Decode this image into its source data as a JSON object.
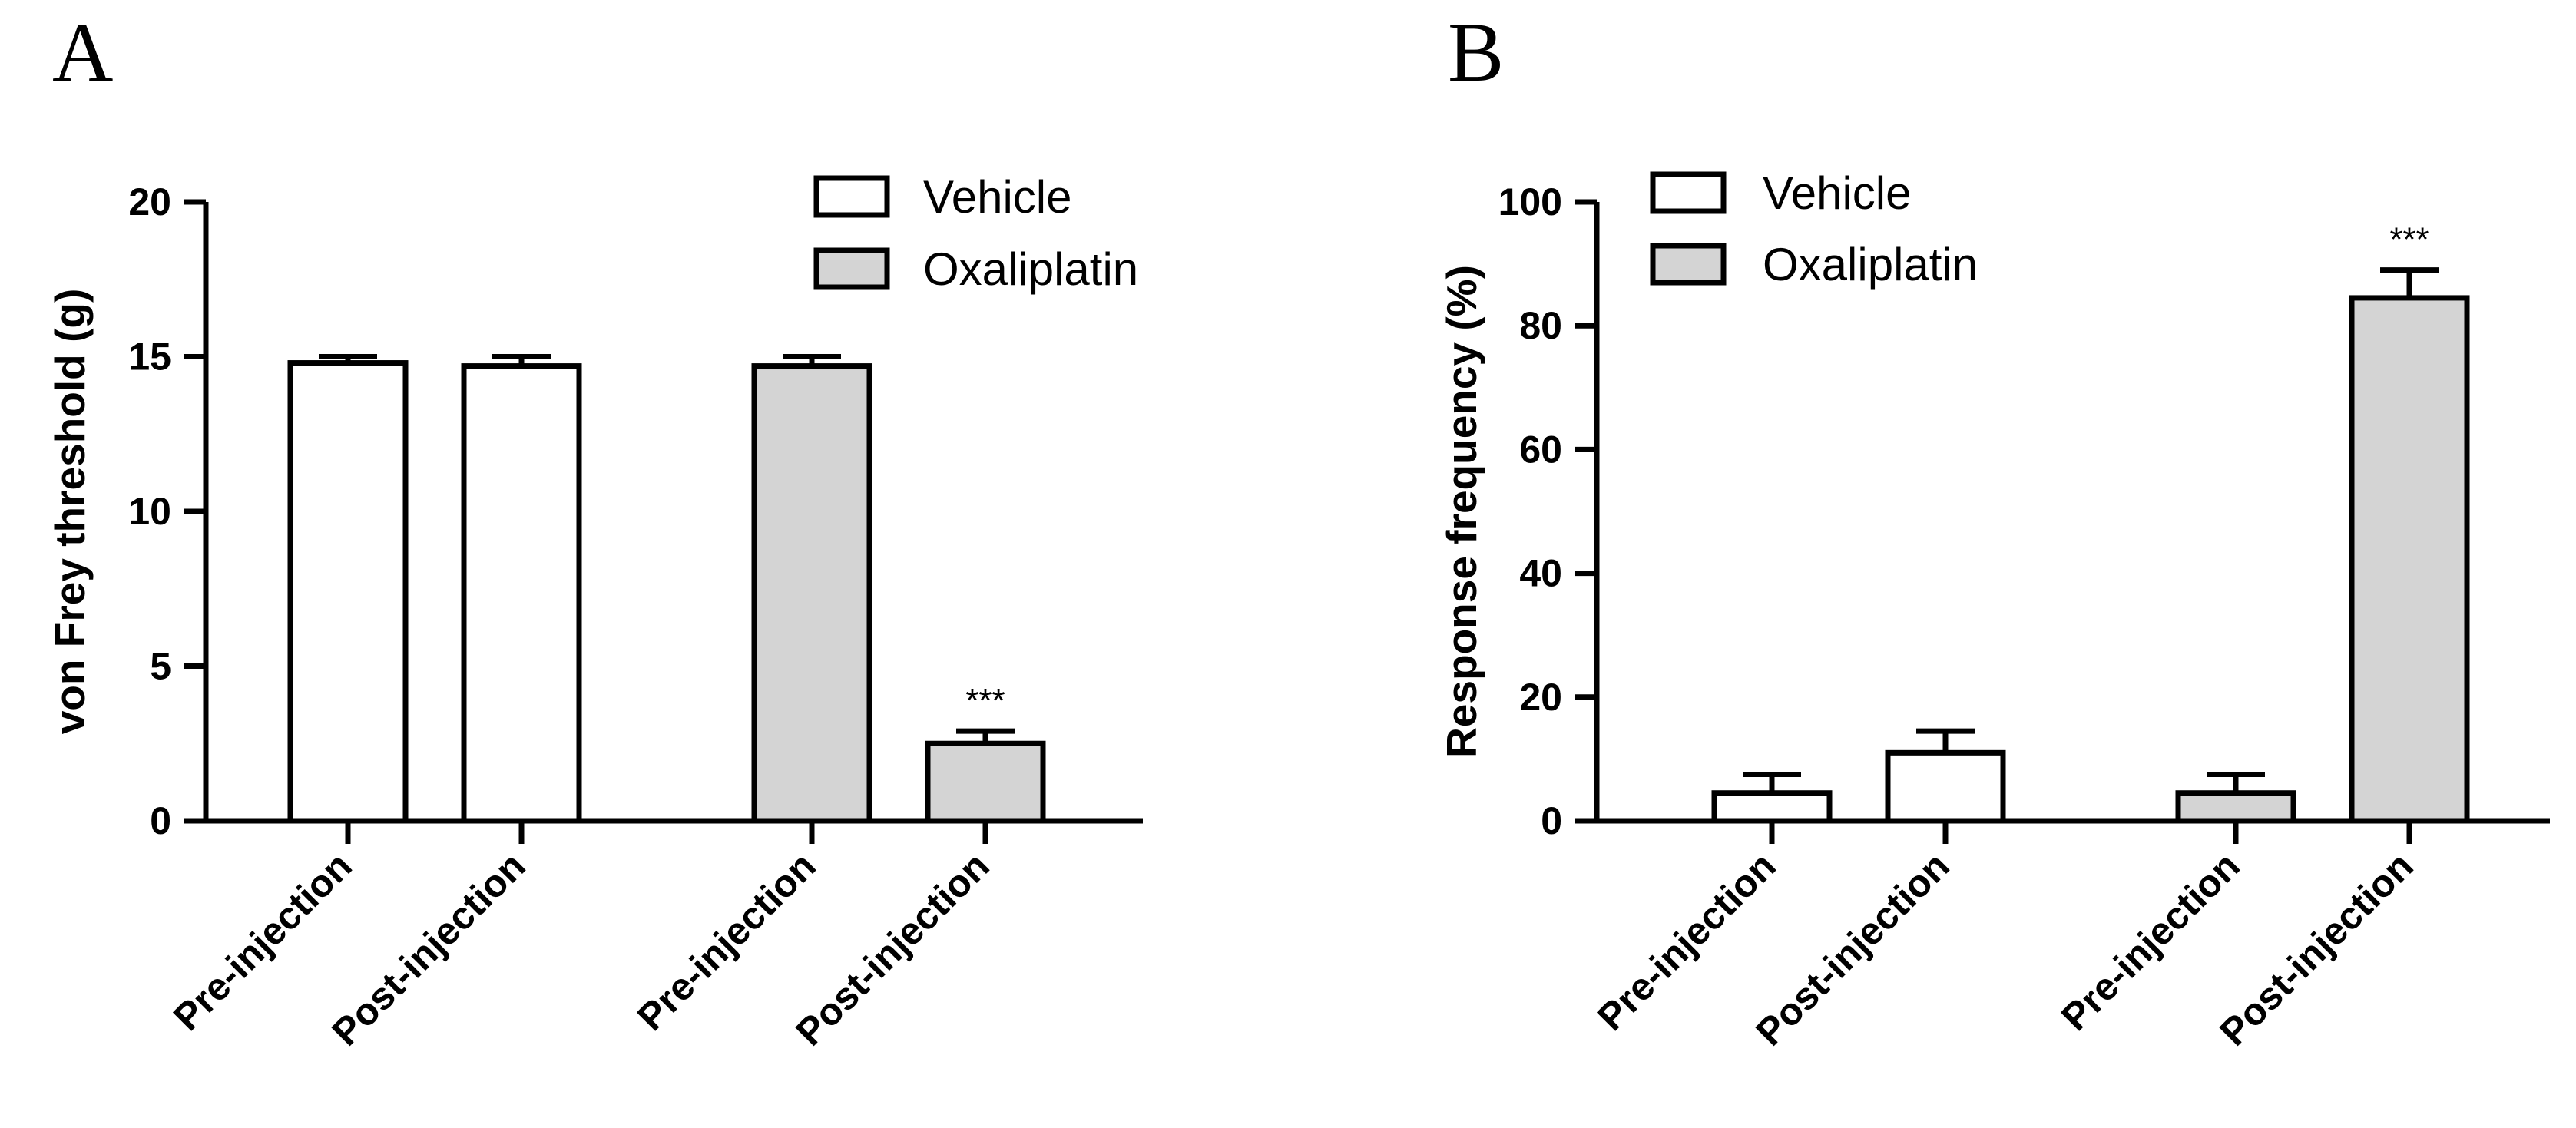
{
  "colors": {
    "vehicle": "#ffffff",
    "oxaliplatin": "#d4d4d4",
    "stroke": "#000000"
  },
  "chart_data": [
    {
      "panel": "A",
      "type": "bar",
      "ylabel": "von  Frey threshold  (g)",
      "ylim": [
        0,
        20
      ],
      "yticks": [
        0,
        5,
        10,
        15,
        20
      ],
      "legend": [
        {
          "name": "Vehicle",
          "group": "vehicle"
        },
        {
          "name": "Oxaliplatin",
          "group": "oxaliplatin"
        }
      ],
      "legend_position": "top-right",
      "bars": [
        {
          "label": "Pre-injection",
          "group": "vehicle",
          "value": 14.8,
          "error": 0.2,
          "annotation": ""
        },
        {
          "label": "Post-injection",
          "group": "vehicle",
          "value": 14.7,
          "error": 0.3,
          "annotation": ""
        },
        {
          "label": "Pre-injection",
          "group": "oxaliplatin",
          "value": 14.7,
          "error": 0.3,
          "annotation": ""
        },
        {
          "label": "Post-injection",
          "group": "oxaliplatin",
          "value": 2.5,
          "error": 0.4,
          "annotation": "***"
        }
      ]
    },
    {
      "panel": "B",
      "type": "bar",
      "ylabel": "Response frequency  (%)",
      "ylim": [
        0,
        100
      ],
      "yticks": [
        0,
        20,
        40,
        60,
        80,
        100
      ],
      "legend": [
        {
          "name": "Vehicle",
          "group": "vehicle"
        },
        {
          "name": "Oxaliplatin",
          "group": "oxaliplatin"
        }
      ],
      "legend_position": "top-left",
      "bars": [
        {
          "label": "Pre-injection",
          "group": "vehicle",
          "value": 4.5,
          "error": 3.0,
          "annotation": ""
        },
        {
          "label": "Post-injection",
          "group": "vehicle",
          "value": 11.0,
          "error": 3.5,
          "annotation": ""
        },
        {
          "label": "Pre-injection",
          "group": "oxaliplatin",
          "value": 4.5,
          "error": 3.0,
          "annotation": ""
        },
        {
          "label": "Post-injection",
          "group": "oxaliplatin",
          "value": 84.5,
          "error": 4.5,
          "annotation": "***"
        }
      ]
    }
  ]
}
